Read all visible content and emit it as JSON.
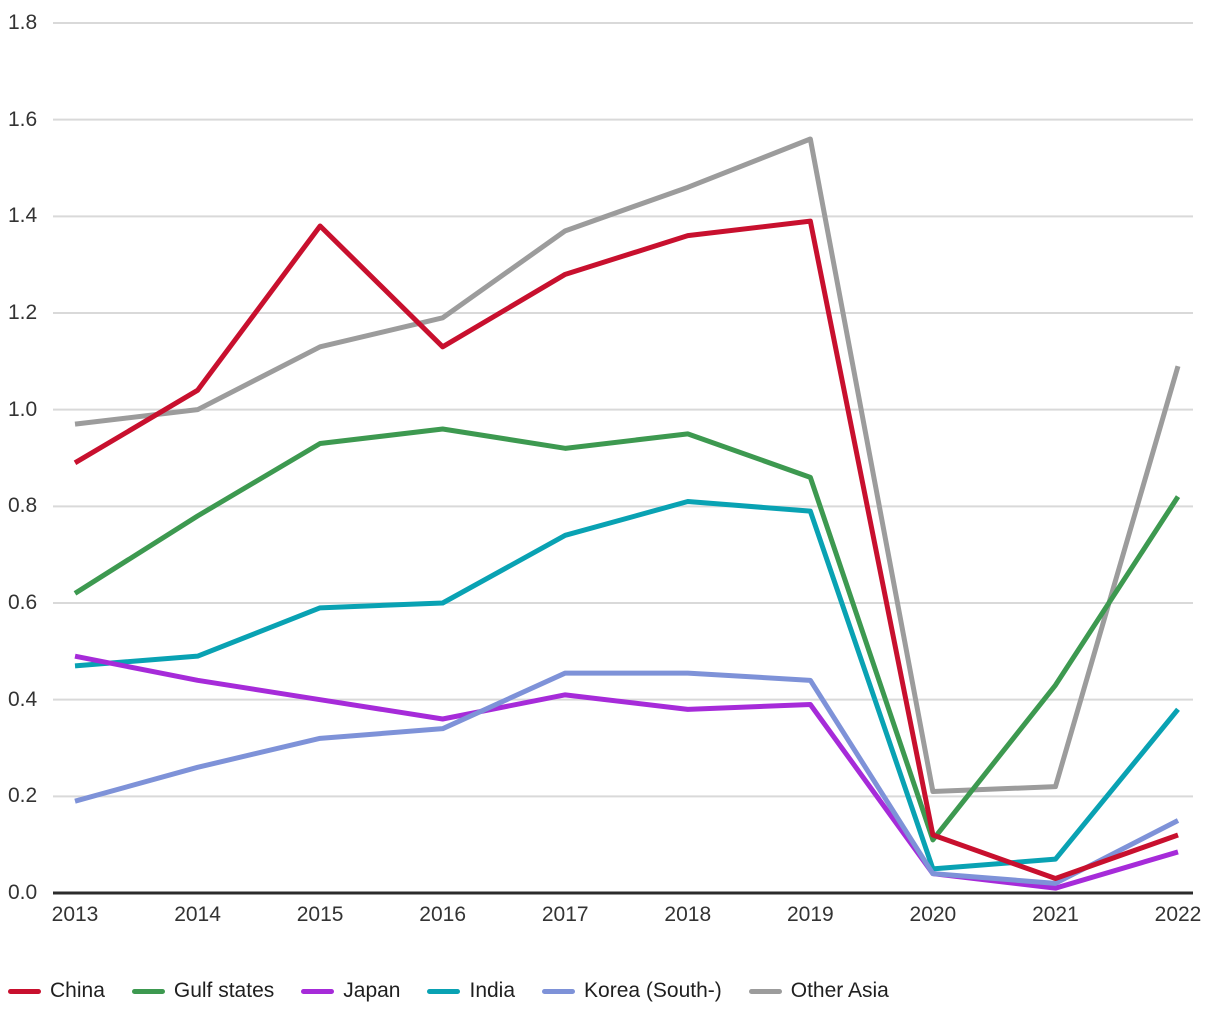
{
  "chart_data": {
    "type": "line",
    "title": "",
    "xlabel": "",
    "ylabel": "",
    "x_categories": [
      "2013",
      "2014",
      "2015",
      "2016",
      "2017",
      "2018",
      "2019",
      "2020",
      "2021",
      "2022"
    ],
    "y_ticks": [
      "0.0",
      "0.2",
      "0.4",
      "0.6",
      "0.8",
      "1.0",
      "1.2",
      "1.4",
      "1.6",
      "1.8"
    ],
    "ylim": [
      0.0,
      1.8
    ],
    "grid": true,
    "legend_position": "bottom",
    "axis_color": "#2b2b2b",
    "gridline_color": "#d9d9d9",
    "text_color": "#333333",
    "series": [
      {
        "name": "China",
        "color": "#c8102e",
        "values": [
          0.89,
          1.04,
          1.38,
          1.13,
          1.28,
          1.36,
          1.39,
          0.12,
          0.03,
          0.12
        ]
      },
      {
        "name": "Gulf states",
        "color": "#3d9950",
        "values": [
          0.62,
          0.78,
          0.93,
          0.96,
          0.92,
          0.95,
          0.86,
          0.11,
          0.43,
          0.82
        ]
      },
      {
        "name": "Japan",
        "color": "#a62bd9",
        "values": [
          0.49,
          0.44,
          0.4,
          0.36,
          0.41,
          0.38,
          0.39,
          0.04,
          0.01,
          0.085
        ]
      },
      {
        "name": "India",
        "color": "#09a2b3",
        "values": [
          0.47,
          0.49,
          0.59,
          0.6,
          0.74,
          0.81,
          0.79,
          0.05,
          0.07,
          0.38
        ]
      },
      {
        "name": "Korea (South-)",
        "color": "#7e92d8",
        "values": [
          0.19,
          0.26,
          0.32,
          0.34,
          0.455,
          0.455,
          0.44,
          0.04,
          0.02,
          0.15
        ]
      },
      {
        "name": "Other Asia",
        "color": "#9c9c9c",
        "values": [
          0.97,
          1.0,
          1.13,
          1.19,
          1.37,
          1.46,
          1.56,
          0.21,
          0.22,
          1.09
        ]
      }
    ],
    "draw_order": [
      "Other Asia",
      "India",
      "Japan",
      "Korea (South-)",
      "Gulf states",
      "China"
    ]
  }
}
